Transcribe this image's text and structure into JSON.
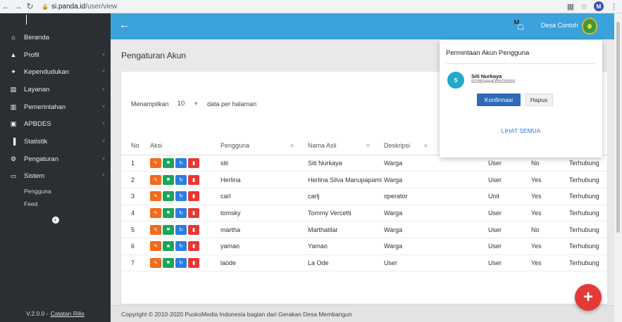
{
  "browser": {
    "url_host": "si.panda.id",
    "url_path": "/user/view",
    "profile_initial": "M"
  },
  "sidebar": {
    "items": [
      {
        "label": "Beranda",
        "icon": "home-icon",
        "glyph": "⌂"
      },
      {
        "label": "Profil",
        "icon": "person-icon",
        "glyph": "▲"
      },
      {
        "label": "Kependudukan",
        "icon": "users-icon",
        "glyph": "✦"
      },
      {
        "label": "Layanan",
        "icon": "file-icon",
        "glyph": "▤"
      },
      {
        "label": "Pemerintahan",
        "icon": "building-icon",
        "glyph": "▥"
      },
      {
        "label": "APBDES",
        "icon": "money-icon",
        "glyph": "▣"
      },
      {
        "label": "Statistik",
        "icon": "bar-chart-icon",
        "glyph": "▐"
      },
      {
        "label": "Pengaturan",
        "icon": "gear-icon",
        "glyph": "⚙"
      },
      {
        "label": "Sistem",
        "icon": "monitor-icon",
        "glyph": "▭"
      }
    ],
    "sub_items": [
      "Pengguna",
      "Feed"
    ],
    "version": "V.2.0.0 -",
    "release_notes": "Catatan Rilis"
  },
  "topbar": {
    "notif_count": "1",
    "user_name": "Desa Contoh"
  },
  "main": {
    "title": "Pengaturan Akun",
    "perpage_prefix": "Menampilkan",
    "perpage_value": "10",
    "perpage_suffix": "data per halaman"
  },
  "table": {
    "headers": [
      "No",
      "Aksi",
      "Pengguna",
      "Nama Asli",
      "Deskripsi",
      "",
      "",
      "",
      ""
    ],
    "rows": [
      [
        "1",
        "siti",
        "Siti Nurkaya",
        "Warga",
        "User",
        "No",
        "Terhubung"
      ],
      [
        "2",
        "Herlina",
        "Herlina Silva Manupapami",
        "Warga",
        "User",
        "Yes",
        "Terhubung"
      ],
      [
        "3",
        "carl",
        "carlj",
        "operator",
        "Unit",
        "Yes",
        "Terhubung"
      ],
      [
        "4",
        "tomsky",
        "Tommy Vercetti",
        "Warga",
        "User",
        "Yes",
        "Terhubung"
      ],
      [
        "5",
        "martha",
        "Marthatilar",
        "Warga",
        "User",
        "No",
        "Terhubung"
      ],
      [
        "6",
        "yamao",
        "Yamao",
        "Warga",
        "User",
        "Yes",
        "Terhubung"
      ],
      [
        "7",
        "laode",
        "La Ode",
        "User",
        "User",
        "Yes",
        "Terhubung"
      ]
    ]
  },
  "dropdown": {
    "title": "Permintaan Akun Pengguna",
    "avatar_initial": "S",
    "name": "Siti Nurkaya",
    "nik": "5206044405920000",
    "confirm": "Konfirmasi",
    "delete": "Hapus",
    "see_all": "LIHAT SEMUA"
  },
  "footer": {
    "text": "Copyright © 2010-2020 PuskoMedia Indonesia bagian dari Gerakan Desa Membangun"
  },
  "colors": {
    "topbar": "#3aa3db",
    "sidebar": "#2b2f33",
    "edit": "#f26a1b",
    "lock": "#1aa65a",
    "reset": "#2a7de1",
    "delete": "#e53935"
  }
}
